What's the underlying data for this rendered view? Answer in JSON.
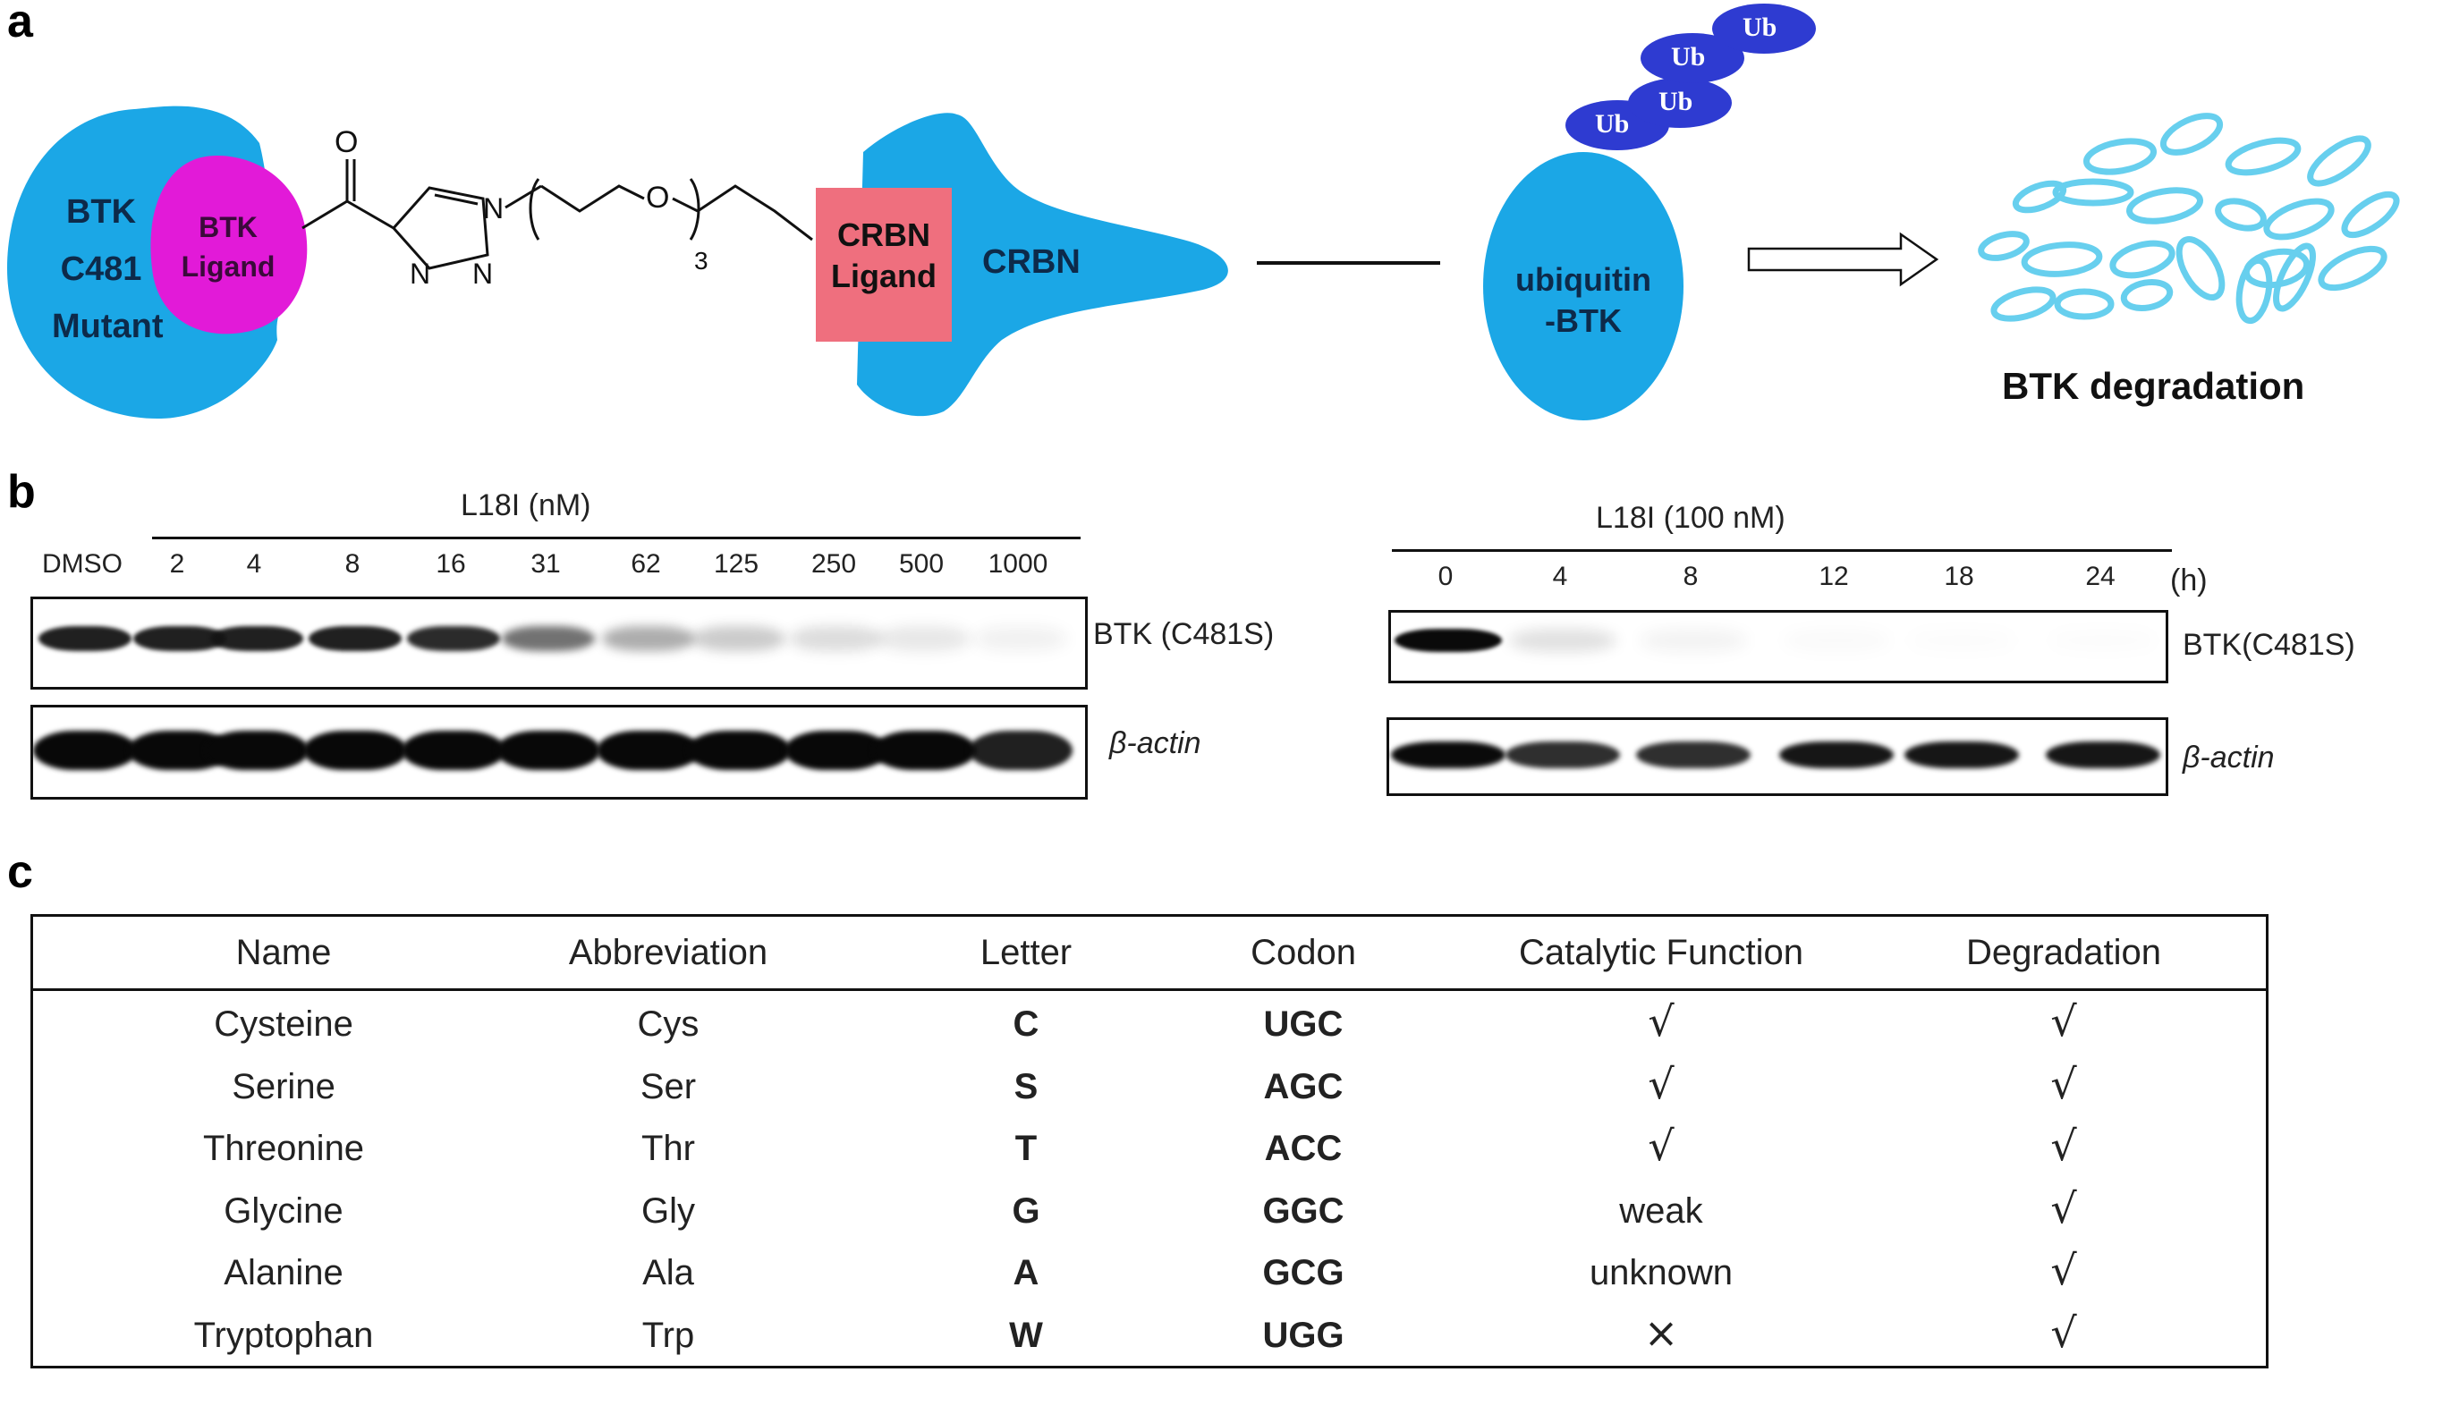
{
  "panels": {
    "a": "a",
    "b": "b",
    "c": "c"
  },
  "diagram": {
    "btk_lines": [
      "BTK",
      "C481",
      "Mutant"
    ],
    "btk_ligand_lines": [
      "BTK",
      "Ligand"
    ],
    "crbn_ligand_lines": [
      "CRBN",
      "Ligand"
    ],
    "crbn_label": "CRBN",
    "carbonyl_o": "O",
    "triazole_n1": "N",
    "triazole_n2": "N",
    "triazole_n3": "N",
    "ether_o": "O",
    "repeat_subscript": "3",
    "ub_tags": [
      "Ub",
      "Ub",
      "Ub",
      "Ub"
    ],
    "ubiquitin_lines": [
      "ubiquitin",
      "-BTK"
    ],
    "degradation_label": "BTK degradation",
    "colors": {
      "protein_blue": "#1ba7e6",
      "btk_ligand_magenta": "#e21ad8",
      "crbn_ligand_pink": "#ef6f7e",
      "ub_blue": "#2e3bd1",
      "fragment_blue": "#67cfee"
    }
  },
  "blot_left": {
    "title": "L18I (nM)",
    "lanes": [
      "DMSO",
      "2",
      "4",
      "8",
      "16",
      "31",
      "62",
      "125",
      "250",
      "500",
      "1000"
    ],
    "rows": [
      "BTK (C481S)",
      "β-actin"
    ],
    "btk_intensity": [
      0.95,
      0.95,
      0.95,
      0.95,
      0.9,
      0.6,
      0.35,
      0.22,
      0.15,
      0.1,
      0.06
    ],
    "actin_intensity": [
      1,
      1,
      1,
      1,
      1,
      1,
      1,
      1,
      1,
      1,
      0.9
    ]
  },
  "blot_right": {
    "title": "L18I (100 nM)",
    "lanes": [
      "0",
      "4",
      "8",
      "12",
      "18",
      "24"
    ],
    "unit": "(h)",
    "rows": [
      "BTK(C481S)",
      "β-actin"
    ],
    "btk_intensity": [
      1,
      0.12,
      0.05,
      0.02,
      0.01,
      0.01
    ],
    "actin_intensity": [
      1,
      0.85,
      0.85,
      0.95,
      0.95,
      0.95
    ]
  },
  "table": {
    "headers": [
      "Name",
      "Abbreviation",
      "Letter",
      "Codon",
      "Catalytic Function",
      "Degradation"
    ],
    "rows": [
      [
        "Cysteine",
        "Cys",
        "C",
        "UGC",
        "√",
        "√"
      ],
      [
        "Serine",
        "Ser",
        "S",
        "AGC",
        "√",
        "√"
      ],
      [
        "Threonine",
        "Thr",
        "T",
        "ACC",
        "√",
        "√"
      ],
      [
        "Glycine",
        "Gly",
        "G",
        "GGC",
        "weak",
        "√"
      ],
      [
        "Alanine",
        "Ala",
        "A",
        "GCG",
        "unknown",
        "√"
      ],
      [
        "Tryptophan",
        "Trp",
        "W",
        "UGG",
        "×",
        "√"
      ]
    ]
  }
}
